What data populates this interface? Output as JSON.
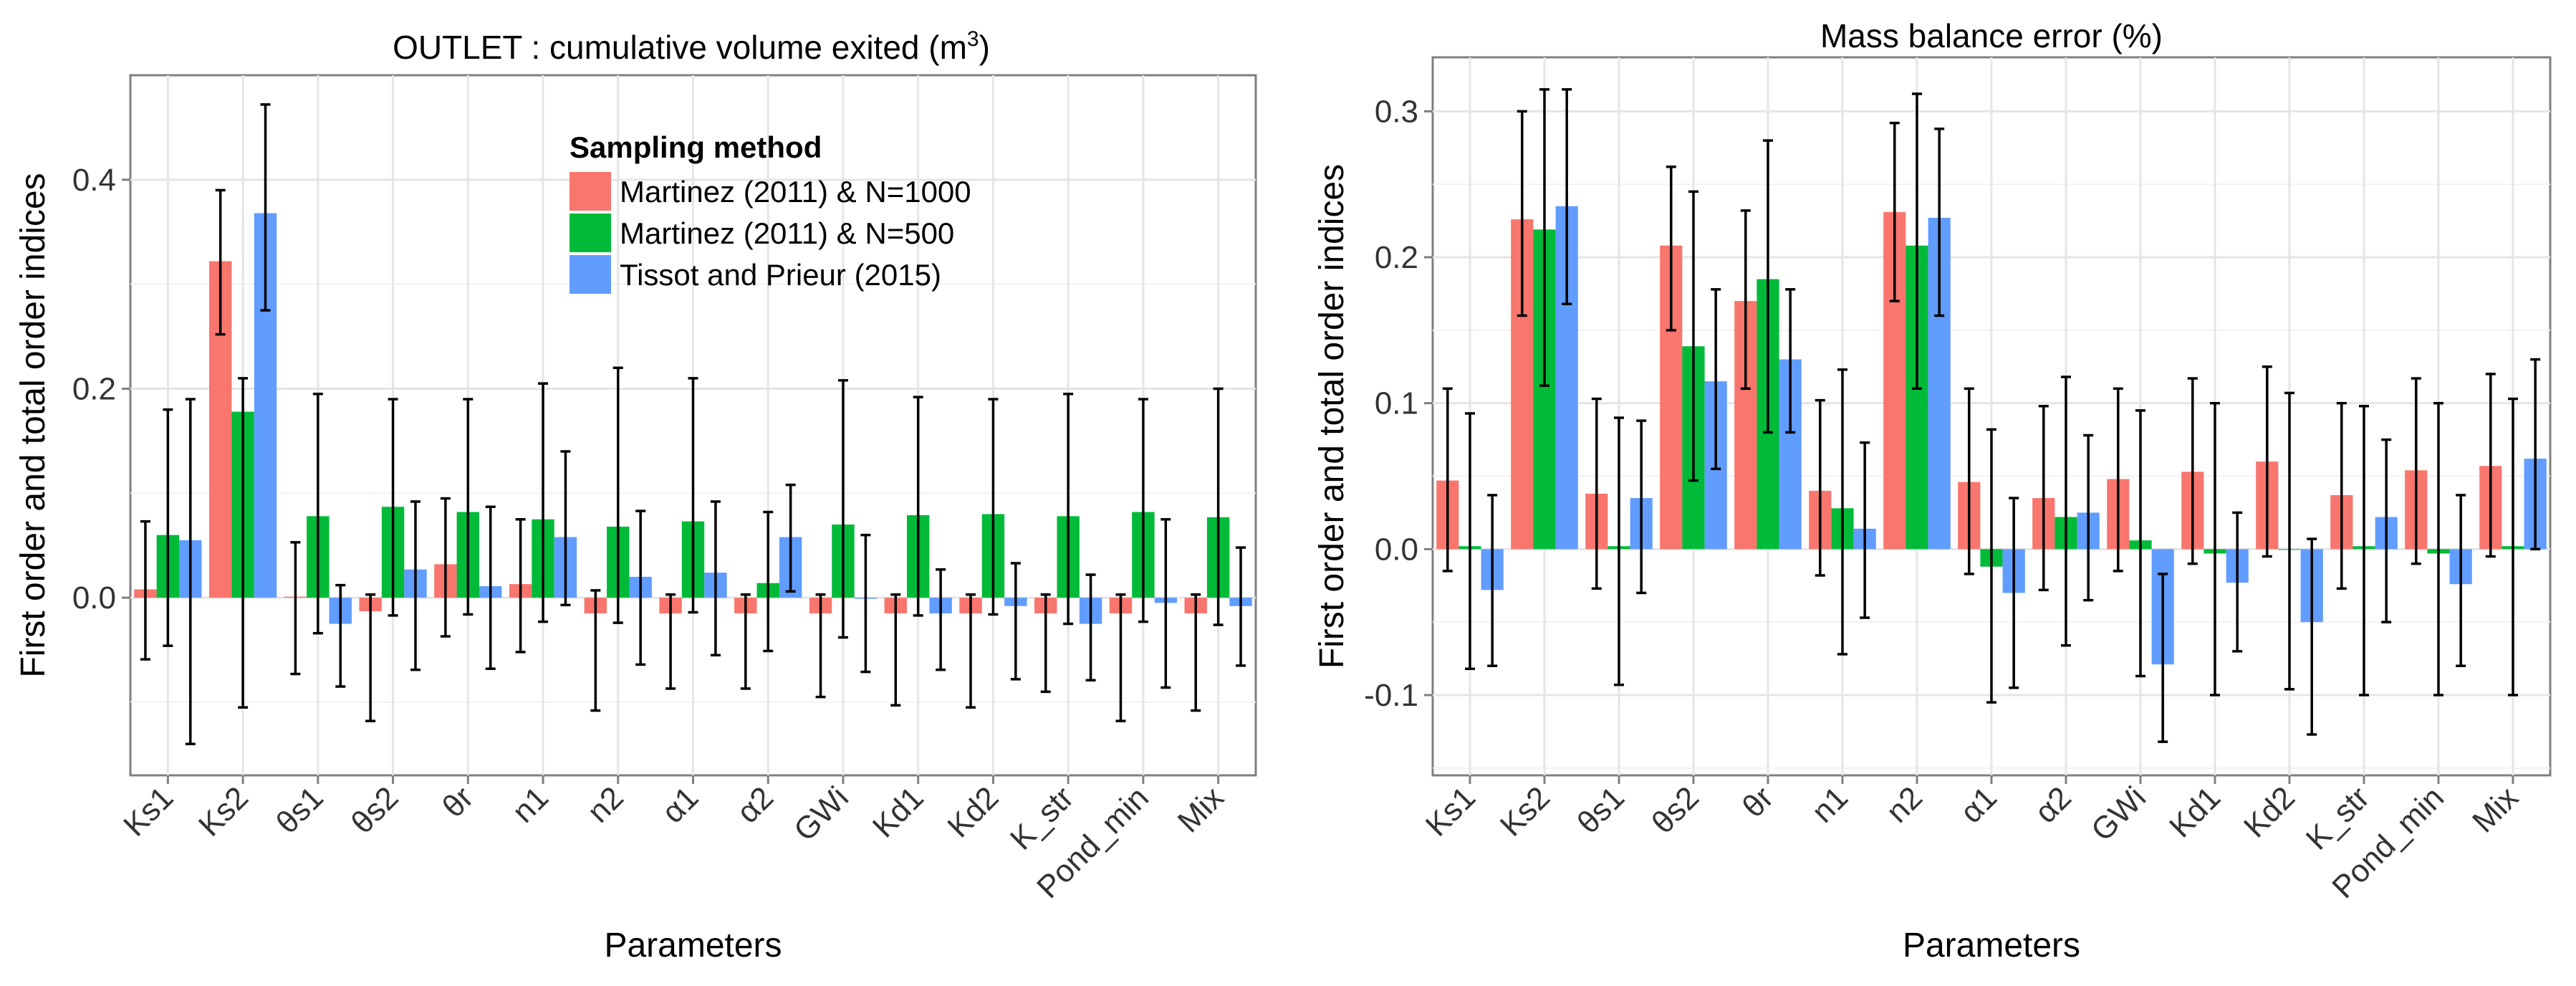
{
  "chart_data": [
    {
      "type": "bar",
      "title": "OUTLET : cumulative volume exited (m",
      "title_superscript": "3",
      "title_close": ")",
      "xlabel": "Parameters",
      "ylabel": "First order and total order indices",
      "ylim": [
        -0.17,
        0.5
      ],
      "yticks": [
        -0.0,
        0.2,
        0.4
      ],
      "ytick_labels": [
        "0.0",
        "0.2",
        "0.4"
      ],
      "categories": [
        "Ks1",
        "Ks2",
        "θs1",
        "θs2",
        "θr",
        "n1",
        "n2",
        "α1",
        "α2",
        "GWi",
        "Kd1",
        "Kd2",
        "K_str",
        "Pond_min",
        "Mix"
      ],
      "legend": {
        "title": "Sampling method",
        "placement": "top-center"
      },
      "series": [
        {
          "name": "Martinez (2011) & N=1000",
          "color": "#F8766D",
          "values": [
            0.008,
            0.322,
            0.001,
            -0.013,
            0.032,
            0.013,
            -0.015,
            -0.015,
            -0.015,
            -0.015,
            -0.015,
            -0.015,
            -0.015,
            -0.015,
            -0.015
          ],
          "err_low": [
            -0.059,
            0.252,
            -0.073,
            -0.118,
            -0.037,
            -0.052,
            -0.108,
            -0.087,
            -0.087,
            -0.095,
            -0.103,
            -0.105,
            -0.09,
            -0.118,
            -0.108
          ],
          "err_high": [
            0.073,
            0.39,
            0.053,
            0.003,
            0.095,
            0.075,
            0.007,
            0.003,
            0.003,
            0.003,
            0.003,
            0.003,
            0.003,
            0.003,
            0.003
          ]
        },
        {
          "name": "Martinez (2011) & N=500",
          "color": "#00BA38",
          "values": [
            0.06,
            0.178,
            0.078,
            0.087,
            0.082,
            0.075,
            0.068,
            0.073,
            0.014,
            0.07,
            0.079,
            0.08,
            0.078,
            0.082,
            0.077
          ],
          "err_low": [
            -0.046,
            -0.105,
            -0.034,
            -0.017,
            -0.016,
            -0.023,
            -0.024,
            -0.014,
            -0.051,
            -0.038,
            -0.017,
            -0.016,
            -0.025,
            -0.023,
            -0.026
          ],
          "err_high": [
            0.18,
            0.21,
            0.195,
            0.19,
            0.19,
            0.205,
            0.22,
            0.21,
            0.082,
            0.208,
            0.192,
            0.19,
            0.195,
            0.19,
            0.2
          ]
        },
        {
          "name": "Tissot and Prieur (2015)",
          "color": "#619CFF",
          "values": [
            0.055,
            0.368,
            -0.025,
            0.027,
            0.011,
            0.058,
            0.02,
            0.024,
            0.058,
            -0.001,
            -0.015,
            -0.008,
            -0.025,
            -0.005,
            -0.008
          ],
          "err_low": [
            -0.14,
            0.275,
            -0.085,
            -0.069,
            -0.068,
            -0.007,
            -0.064,
            -0.055,
            0.006,
            -0.071,
            -0.069,
            -0.078,
            -0.079,
            -0.086,
            -0.065
          ],
          "err_high": [
            0.19,
            0.472,
            0.012,
            0.092,
            0.087,
            0.14,
            0.083,
            0.092,
            0.108,
            0.06,
            0.027,
            0.033,
            0.022,
            0.075,
            0.048
          ]
        }
      ]
    },
    {
      "type": "bar",
      "title": "Mass balance error (%)",
      "xlabel": "Parameters",
      "ylabel": "First order and total order indices",
      "ylim": [
        -0.155,
        0.337
      ],
      "yticks": [
        -0.1,
        0.0,
        0.1,
        0.2,
        0.3
      ],
      "ytick_labels": [
        "-0.1",
        "0.0",
        "0.1",
        "0.2",
        "0.3"
      ],
      "categories": [
        "Ks1",
        "Ks2",
        "θs1",
        "θs2",
        "θr",
        "n1",
        "n2",
        "α1",
        "α2",
        "GWi",
        "Kd1",
        "Kd2",
        "K_str",
        "Pond_min",
        "Mix"
      ],
      "series": [
        {
          "name": "Martinez (2011) & N=1000",
          "color": "#F8766D",
          "values": [
            0.047,
            0.226,
            0.038,
            0.208,
            0.17,
            0.04,
            0.231,
            0.046,
            0.035,
            0.048,
            0.053,
            0.06,
            0.037,
            0.054,
            0.057
          ],
          "err_low": [
            -0.015,
            0.16,
            -0.027,
            0.15,
            0.11,
            -0.018,
            0.17,
            -0.017,
            -0.028,
            -0.015,
            -0.01,
            -0.005,
            -0.027,
            -0.01,
            -0.005
          ],
          "err_high": [
            0.11,
            0.3,
            0.103,
            0.262,
            0.232,
            0.102,
            0.292,
            0.11,
            0.098,
            0.11,
            0.117,
            0.125,
            0.1,
            0.117,
            0.12
          ]
        },
        {
          "name": "Martinez (2011) & N=500",
          "color": "#00BA38",
          "values": [
            0.002,
            0.219,
            0.002,
            0.139,
            0.185,
            0.028,
            0.208,
            -0.012,
            0.022,
            0.006,
            -0.003,
            0.0,
            0.002,
            -0.003,
            0.002
          ],
          "err_low": [
            -0.082,
            0.112,
            -0.093,
            0.047,
            0.08,
            -0.072,
            0.11,
            -0.105,
            -0.066,
            -0.087,
            -0.1,
            -0.096,
            -0.1,
            -0.1,
            -0.1
          ],
          "err_high": [
            0.093,
            0.315,
            0.09,
            0.245,
            0.28,
            0.123,
            0.312,
            0.082,
            0.118,
            0.095,
            0.1,
            0.107,
            0.098,
            0.1,
            0.103
          ]
        },
        {
          "name": "Tissot and Prieur (2015)",
          "color": "#619CFF",
          "values": [
            -0.028,
            0.235,
            0.035,
            0.115,
            0.13,
            0.014,
            0.227,
            -0.03,
            0.025,
            -0.079,
            -0.023,
            -0.05,
            0.022,
            -0.024,
            0.062
          ],
          "err_low": [
            -0.08,
            0.168,
            -0.03,
            0.055,
            0.08,
            -0.047,
            0.16,
            -0.095,
            -0.035,
            -0.132,
            -0.07,
            -0.127,
            -0.05,
            -0.08,
            0.0
          ],
          "err_high": [
            0.037,
            0.315,
            0.088,
            0.178,
            0.178,
            0.073,
            0.288,
            0.035,
            0.078,
            -0.017,
            0.025,
            0.007,
            0.075,
            0.037,
            0.13
          ]
        }
      ]
    }
  ]
}
